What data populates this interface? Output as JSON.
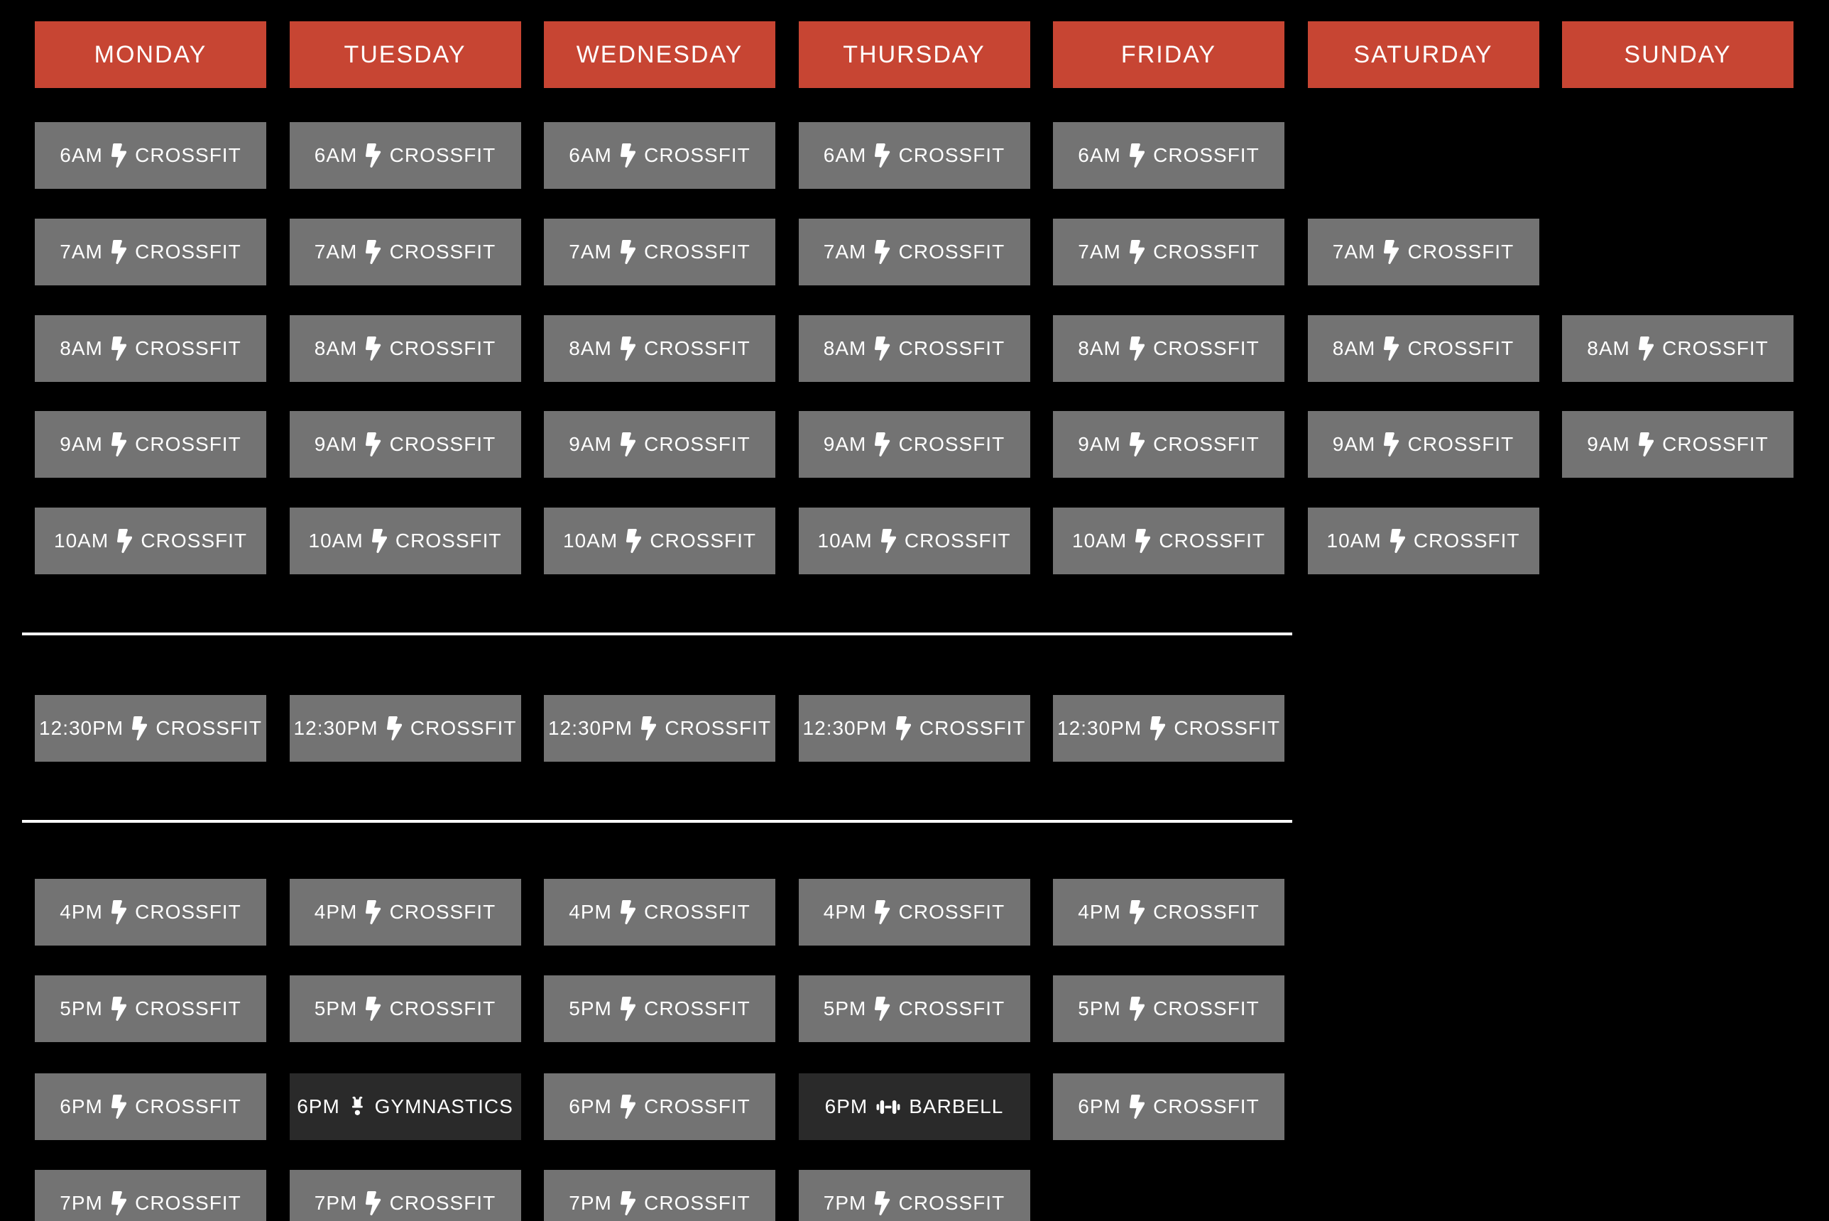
{
  "colors": {
    "background": "#000000",
    "day_header_bg": "#c74533",
    "class_button_bg": "#737373",
    "special_class_bg": "#2a2a2a",
    "text": "#ffffff",
    "divider": "#ffffff"
  },
  "days": [
    "MONDAY",
    "TUESDAY",
    "WEDNESDAY",
    "THURSDAY",
    "FRIDAY",
    "SATURDAY",
    "SUNDAY"
  ],
  "icon_legend": {
    "bolt-icon": "lightning bolt",
    "gymnastics-icon": "handstand figure",
    "barbell-icon": "dumbbell"
  },
  "schedule": {
    "rows": [
      {
        "time": "6AM",
        "cells": [
          {
            "day": 0,
            "label": "CROSSFIT",
            "icon": "bolt-icon",
            "variant": "default"
          },
          {
            "day": 1,
            "label": "CROSSFIT",
            "icon": "bolt-icon",
            "variant": "default"
          },
          {
            "day": 2,
            "label": "CROSSFIT",
            "icon": "bolt-icon",
            "variant": "default"
          },
          {
            "day": 3,
            "label": "CROSSFIT",
            "icon": "bolt-icon",
            "variant": "default"
          },
          {
            "day": 4,
            "label": "CROSSFIT",
            "icon": "bolt-icon",
            "variant": "default"
          }
        ]
      },
      {
        "time": "7AM",
        "cells": [
          {
            "day": 0,
            "label": "CROSSFIT",
            "icon": "bolt-icon",
            "variant": "default"
          },
          {
            "day": 1,
            "label": "CROSSFIT",
            "icon": "bolt-icon",
            "variant": "default"
          },
          {
            "day": 2,
            "label": "CROSSFIT",
            "icon": "bolt-icon",
            "variant": "default"
          },
          {
            "day": 3,
            "label": "CROSSFIT",
            "icon": "bolt-icon",
            "variant": "default"
          },
          {
            "day": 4,
            "label": "CROSSFIT",
            "icon": "bolt-icon",
            "variant": "default"
          },
          {
            "day": 5,
            "label": "CROSSFIT",
            "icon": "bolt-icon",
            "variant": "default"
          }
        ]
      },
      {
        "time": "8AM",
        "cells": [
          {
            "day": 0,
            "label": "CROSSFIT",
            "icon": "bolt-icon",
            "variant": "default"
          },
          {
            "day": 1,
            "label": "CROSSFIT",
            "icon": "bolt-icon",
            "variant": "default"
          },
          {
            "day": 2,
            "label": "CROSSFIT",
            "icon": "bolt-icon",
            "variant": "default"
          },
          {
            "day": 3,
            "label": "CROSSFIT",
            "icon": "bolt-icon",
            "variant": "default"
          },
          {
            "day": 4,
            "label": "CROSSFIT",
            "icon": "bolt-icon",
            "variant": "default"
          },
          {
            "day": 5,
            "label": "CROSSFIT",
            "icon": "bolt-icon",
            "variant": "default"
          },
          {
            "day": 6,
            "label": "CROSSFIT",
            "icon": "bolt-icon",
            "variant": "default"
          }
        ]
      },
      {
        "time": "9AM",
        "cells": [
          {
            "day": 0,
            "label": "CROSSFIT",
            "icon": "bolt-icon",
            "variant": "default"
          },
          {
            "day": 1,
            "label": "CROSSFIT",
            "icon": "bolt-icon",
            "variant": "default"
          },
          {
            "day": 2,
            "label": "CROSSFIT",
            "icon": "bolt-icon",
            "variant": "default"
          },
          {
            "day": 3,
            "label": "CROSSFIT",
            "icon": "bolt-icon",
            "variant": "default"
          },
          {
            "day": 4,
            "label": "CROSSFIT",
            "icon": "bolt-icon",
            "variant": "default"
          },
          {
            "day": 5,
            "label": "CROSSFIT",
            "icon": "bolt-icon",
            "variant": "default"
          },
          {
            "day": 6,
            "label": "CROSSFIT",
            "icon": "bolt-icon",
            "variant": "default"
          }
        ]
      },
      {
        "time": "10AM",
        "cells": [
          {
            "day": 0,
            "label": "CROSSFIT",
            "icon": "bolt-icon",
            "variant": "default"
          },
          {
            "day": 1,
            "label": "CROSSFIT",
            "icon": "bolt-icon",
            "variant": "default"
          },
          {
            "day": 2,
            "label": "CROSSFIT",
            "icon": "bolt-icon",
            "variant": "default"
          },
          {
            "day": 3,
            "label": "CROSSFIT",
            "icon": "bolt-icon",
            "variant": "default"
          },
          {
            "day": 4,
            "label": "CROSSFIT",
            "icon": "bolt-icon",
            "variant": "default"
          },
          {
            "day": 5,
            "label": "CROSSFIT",
            "icon": "bolt-icon",
            "variant": "default"
          }
        ]
      },
      {
        "time": "12:30PM",
        "cells": [
          {
            "day": 0,
            "label": "CROSSFIT",
            "icon": "bolt-icon",
            "variant": "default"
          },
          {
            "day": 1,
            "label": "CROSSFIT",
            "icon": "bolt-icon",
            "variant": "default"
          },
          {
            "day": 2,
            "label": "CROSSFIT",
            "icon": "bolt-icon",
            "variant": "default"
          },
          {
            "day": 3,
            "label": "CROSSFIT",
            "icon": "bolt-icon",
            "variant": "default"
          },
          {
            "day": 4,
            "label": "CROSSFIT",
            "icon": "bolt-icon",
            "variant": "default"
          }
        ]
      },
      {
        "time": "4PM",
        "cells": [
          {
            "day": 0,
            "label": "CROSSFIT",
            "icon": "bolt-icon",
            "variant": "default"
          },
          {
            "day": 1,
            "label": "CROSSFIT",
            "icon": "bolt-icon",
            "variant": "default"
          },
          {
            "day": 2,
            "label": "CROSSFIT",
            "icon": "bolt-icon",
            "variant": "default"
          },
          {
            "day": 3,
            "label": "CROSSFIT",
            "icon": "bolt-icon",
            "variant": "default"
          },
          {
            "day": 4,
            "label": "CROSSFIT",
            "icon": "bolt-icon",
            "variant": "default"
          }
        ]
      },
      {
        "time": "5PM",
        "cells": [
          {
            "day": 0,
            "label": "CROSSFIT",
            "icon": "bolt-icon",
            "variant": "default"
          },
          {
            "day": 1,
            "label": "CROSSFIT",
            "icon": "bolt-icon",
            "variant": "default"
          },
          {
            "day": 2,
            "label": "CROSSFIT",
            "icon": "bolt-icon",
            "variant": "default"
          },
          {
            "day": 3,
            "label": "CROSSFIT",
            "icon": "bolt-icon",
            "variant": "default"
          },
          {
            "day": 4,
            "label": "CROSSFIT",
            "icon": "bolt-icon",
            "variant": "default"
          }
        ]
      },
      {
        "time": "6PM",
        "cells": [
          {
            "day": 0,
            "label": "CROSSFIT",
            "icon": "bolt-icon",
            "variant": "default"
          },
          {
            "day": 1,
            "label": "GYMNASTICS",
            "icon": "gymnastics-icon",
            "variant": "special"
          },
          {
            "day": 2,
            "label": "CROSSFIT",
            "icon": "bolt-icon",
            "variant": "default"
          },
          {
            "day": 3,
            "label": "BARBELL",
            "icon": "barbell-icon",
            "variant": "special"
          },
          {
            "day": 4,
            "label": "CROSSFIT",
            "icon": "bolt-icon",
            "variant": "default"
          }
        ]
      },
      {
        "time": "7PM",
        "cells": [
          {
            "day": 0,
            "label": "CROSSFIT",
            "icon": "bolt-icon",
            "variant": "default"
          },
          {
            "day": 1,
            "label": "CROSSFIT",
            "icon": "bolt-icon",
            "variant": "default"
          },
          {
            "day": 2,
            "label": "CROSSFIT",
            "icon": "bolt-icon",
            "variant": "default"
          },
          {
            "day": 3,
            "label": "CROSSFIT",
            "icon": "bolt-icon",
            "variant": "default"
          }
        ]
      }
    ]
  }
}
